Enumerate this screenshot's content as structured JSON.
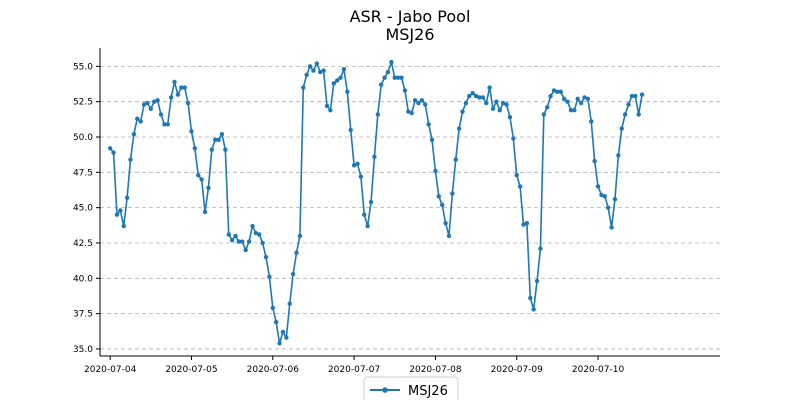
{
  "chart_data": {
    "type": "line",
    "title": "ASR - Jabo Pool",
    "subtitle": "MSJ26",
    "xlabel": "",
    "ylabel": "",
    "x_axis_type": "date",
    "xlim": [
      "2020-07-03 21:00",
      "2020-07-11 12:00"
    ],
    "ylim": [
      34.5,
      56.3
    ],
    "x_ticks": [
      "2020-07-04",
      "2020-07-05",
      "2020-07-06",
      "2020-07-07",
      "2020-07-08",
      "2020-07-09",
      "2020-07-10"
    ],
    "y_ticks": [
      35.0,
      37.5,
      40.0,
      42.5,
      45.0,
      47.5,
      50.0,
      52.5,
      55.0
    ],
    "y_tick_labels": [
      "35.0",
      "37.5",
      "40.0",
      "42.5",
      "45.0",
      "47.5",
      "50.0",
      "52.5",
      "55.0"
    ],
    "grid": "horizontal dashed",
    "legend_position": "bottom-center",
    "series": [
      {
        "name": "MSJ26",
        "color": "#1f77b4",
        "points": [
          [
            "2020-07-04 00:00",
            49.2
          ],
          [
            "2020-07-04 01:00",
            48.9
          ],
          [
            "2020-07-04 02:00",
            44.5
          ],
          [
            "2020-07-04 03:00",
            44.8
          ],
          [
            "2020-07-04 04:00",
            43.7
          ],
          [
            "2020-07-04 05:00",
            45.7
          ],
          [
            "2020-07-04 06:00",
            48.4
          ],
          [
            "2020-07-04 07:00",
            50.2
          ],
          [
            "2020-07-04 08:00",
            51.3
          ],
          [
            "2020-07-04 09:00",
            51.1
          ],
          [
            "2020-07-04 10:00",
            52.3
          ],
          [
            "2020-07-04 11:00",
            52.4
          ],
          [
            "2020-07-04 12:00",
            52.0
          ],
          [
            "2020-07-04 13:00",
            52.5
          ],
          [
            "2020-07-04 14:00",
            52.6
          ],
          [
            "2020-07-04 15:00",
            51.6
          ],
          [
            "2020-07-04 16:00",
            50.9
          ],
          [
            "2020-07-04 17:00",
            50.9
          ],
          [
            "2020-07-04 18:00",
            52.8
          ],
          [
            "2020-07-04 19:00",
            53.9
          ],
          [
            "2020-07-04 20:00",
            53.0
          ],
          [
            "2020-07-04 21:00",
            53.5
          ],
          [
            "2020-07-04 22:00",
            53.5
          ],
          [
            "2020-07-04 23:00",
            52.4
          ],
          [
            "2020-07-05 00:00",
            50.4
          ],
          [
            "2020-07-05 01:00",
            49.2
          ],
          [
            "2020-07-05 02:00",
            47.3
          ],
          [
            "2020-07-05 03:00",
            47.0
          ],
          [
            "2020-07-05 04:00",
            44.7
          ],
          [
            "2020-07-05 05:00",
            46.4
          ],
          [
            "2020-07-05 06:00",
            49.1
          ],
          [
            "2020-07-05 07:00",
            49.8
          ],
          [
            "2020-07-05 08:00",
            49.8
          ],
          [
            "2020-07-05 09:00",
            50.2
          ],
          [
            "2020-07-05 10:00",
            49.1
          ],
          [
            "2020-07-05 11:00",
            43.1
          ],
          [
            "2020-07-05 12:00",
            42.7
          ],
          [
            "2020-07-05 13:00",
            43.0
          ],
          [
            "2020-07-05 14:00",
            42.6
          ],
          [
            "2020-07-05 15:00",
            42.6
          ],
          [
            "2020-07-05 16:00",
            42.0
          ],
          [
            "2020-07-05 17:00",
            42.6
          ],
          [
            "2020-07-05 18:00",
            43.7
          ],
          [
            "2020-07-05 19:00",
            43.2
          ],
          [
            "2020-07-05 20:00",
            43.1
          ],
          [
            "2020-07-05 21:00",
            42.5
          ],
          [
            "2020-07-05 22:00",
            41.5
          ],
          [
            "2020-07-05 23:00",
            40.1
          ],
          [
            "2020-07-06 00:00",
            37.9
          ],
          [
            "2020-07-06 01:00",
            36.9
          ],
          [
            "2020-07-06 02:00",
            35.4
          ],
          [
            "2020-07-06 03:00",
            36.2
          ],
          [
            "2020-07-06 04:00",
            35.8
          ],
          [
            "2020-07-06 05:00",
            38.2
          ],
          [
            "2020-07-06 06:00",
            40.3
          ],
          [
            "2020-07-06 07:00",
            41.8
          ],
          [
            "2020-07-06 08:00",
            43.0
          ],
          [
            "2020-07-06 09:00",
            53.5
          ],
          [
            "2020-07-06 10:00",
            54.4
          ],
          [
            "2020-07-06 11:00",
            55.0
          ],
          [
            "2020-07-06 12:00",
            54.7
          ],
          [
            "2020-07-06 13:00",
            55.2
          ],
          [
            "2020-07-06 14:00",
            54.6
          ],
          [
            "2020-07-06 15:00",
            54.7
          ],
          [
            "2020-07-06 16:00",
            52.2
          ],
          [
            "2020-07-06 17:00",
            51.9
          ],
          [
            "2020-07-06 18:00",
            53.8
          ],
          [
            "2020-07-06 19:00",
            54.0
          ],
          [
            "2020-07-06 20:00",
            54.2
          ],
          [
            "2020-07-06 21:00",
            54.8
          ],
          [
            "2020-07-06 22:00",
            53.2
          ],
          [
            "2020-07-06 23:00",
            50.5
          ],
          [
            "2020-07-07 00:00",
            48.0
          ],
          [
            "2020-07-07 01:00",
            48.1
          ],
          [
            "2020-07-07 02:00",
            47.2
          ],
          [
            "2020-07-07 03:00",
            44.5
          ],
          [
            "2020-07-07 04:00",
            43.7
          ],
          [
            "2020-07-07 05:00",
            45.4
          ],
          [
            "2020-07-07 06:00",
            48.6
          ],
          [
            "2020-07-07 07:00",
            51.6
          ],
          [
            "2020-07-07 08:00",
            53.7
          ],
          [
            "2020-07-07 09:00",
            54.2
          ],
          [
            "2020-07-07 10:00",
            54.6
          ],
          [
            "2020-07-07 11:00",
            55.3
          ],
          [
            "2020-07-07 12:00",
            54.2
          ],
          [
            "2020-07-07 13:00",
            54.2
          ],
          [
            "2020-07-07 14:00",
            54.2
          ],
          [
            "2020-07-07 15:00",
            53.3
          ],
          [
            "2020-07-07 16:00",
            51.8
          ],
          [
            "2020-07-07 17:00",
            51.7
          ],
          [
            "2020-07-07 18:00",
            52.6
          ],
          [
            "2020-07-07 19:00",
            52.4
          ],
          [
            "2020-07-07 20:00",
            52.6
          ],
          [
            "2020-07-07 21:00",
            52.3
          ],
          [
            "2020-07-07 22:00",
            50.9
          ],
          [
            "2020-07-07 23:00",
            49.8
          ],
          [
            "2020-07-08 00:00",
            47.6
          ],
          [
            "2020-07-08 01:00",
            45.8
          ],
          [
            "2020-07-08 02:00",
            45.2
          ],
          [
            "2020-07-08 03:00",
            43.9
          ],
          [
            "2020-07-08 04:00",
            43.0
          ],
          [
            "2020-07-08 05:00",
            46.0
          ],
          [
            "2020-07-08 06:00",
            48.4
          ],
          [
            "2020-07-08 07:00",
            50.6
          ],
          [
            "2020-07-08 08:00",
            51.8
          ],
          [
            "2020-07-08 09:00",
            52.4
          ],
          [
            "2020-07-08 10:00",
            52.9
          ],
          [
            "2020-07-08 11:00",
            53.1
          ],
          [
            "2020-07-08 12:00",
            52.9
          ],
          [
            "2020-07-08 13:00",
            52.8
          ],
          [
            "2020-07-08 14:00",
            52.8
          ],
          [
            "2020-07-08 15:00",
            52.4
          ],
          [
            "2020-07-08 16:00",
            53.5
          ],
          [
            "2020-07-08 17:00",
            52.0
          ],
          [
            "2020-07-08 18:00",
            52.5
          ],
          [
            "2020-07-08 19:00",
            51.9
          ],
          [
            "2020-07-08 20:00",
            52.4
          ],
          [
            "2020-07-08 21:00",
            52.3
          ],
          [
            "2020-07-08 22:00",
            51.4
          ],
          [
            "2020-07-08 23:00",
            49.9
          ],
          [
            "2020-07-09 00:00",
            47.3
          ],
          [
            "2020-07-09 01:00",
            46.5
          ],
          [
            "2020-07-09 02:00",
            43.8
          ],
          [
            "2020-07-09 03:00",
            43.9
          ],
          [
            "2020-07-09 04:00",
            38.6
          ],
          [
            "2020-07-09 05:00",
            37.8
          ],
          [
            "2020-07-09 06:00",
            39.8
          ],
          [
            "2020-07-09 07:00",
            42.1
          ],
          [
            "2020-07-09 08:00",
            51.6
          ],
          [
            "2020-07-09 09:00",
            52.1
          ],
          [
            "2020-07-09 10:00",
            52.9
          ],
          [
            "2020-07-09 11:00",
            53.3
          ],
          [
            "2020-07-09 12:00",
            53.2
          ],
          [
            "2020-07-09 13:00",
            53.2
          ],
          [
            "2020-07-09 14:00",
            52.7
          ],
          [
            "2020-07-09 15:00",
            52.5
          ],
          [
            "2020-07-09 16:00",
            51.9
          ],
          [
            "2020-07-09 17:00",
            51.9
          ],
          [
            "2020-07-09 18:00",
            52.7
          ],
          [
            "2020-07-09 19:00",
            52.4
          ],
          [
            "2020-07-09 20:00",
            52.8
          ],
          [
            "2020-07-09 21:00",
            52.7
          ],
          [
            "2020-07-09 22:00",
            51.1
          ],
          [
            "2020-07-09 23:00",
            48.3
          ],
          [
            "2020-07-10 00:00",
            46.5
          ],
          [
            "2020-07-10 01:00",
            45.9
          ],
          [
            "2020-07-10 02:00",
            45.8
          ],
          [
            "2020-07-10 03:00",
            45.0
          ],
          [
            "2020-07-10 04:00",
            43.6
          ],
          [
            "2020-07-10 05:00",
            45.6
          ],
          [
            "2020-07-10 06:00",
            48.7
          ],
          [
            "2020-07-10 07:00",
            50.6
          ],
          [
            "2020-07-10 08:00",
            51.6
          ],
          [
            "2020-07-10 09:00",
            52.3
          ],
          [
            "2020-07-10 10:00",
            52.9
          ],
          [
            "2020-07-10 11:00",
            52.9
          ],
          [
            "2020-07-10 12:00",
            51.6
          ],
          [
            "2020-07-10 13:00",
            53.0
          ]
        ]
      }
    ]
  }
}
